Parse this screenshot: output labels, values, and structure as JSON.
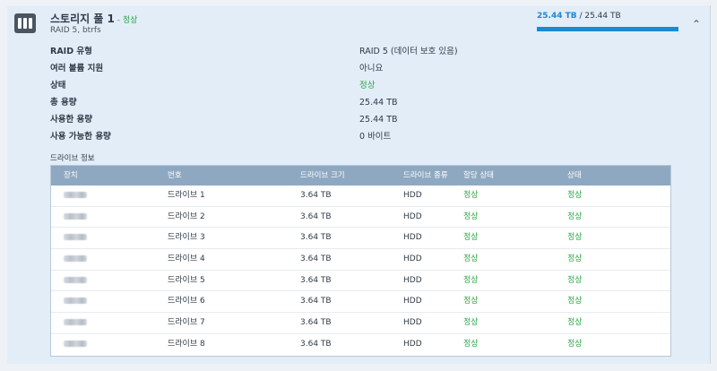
{
  "pool": {
    "title": "스토리지 풀 1",
    "separator": " - ",
    "status": "정상",
    "subtitle": "RAID 5, btrfs",
    "used": "25.44 TB",
    "capacity_suffix": " / 25.44 TB",
    "used_fraction": 1.0
  },
  "properties": [
    {
      "label": "RAID 유형",
      "value": "RAID 5 (데이터 보호 있음)"
    },
    {
      "label": "여러 볼륨 지원",
      "value": "아니요"
    },
    {
      "label": "상태",
      "value": "정상"
    },
    {
      "label": "총 용량",
      "value": "25.44 TB"
    },
    {
      "label": "사용한 용량",
      "value": "25.44 TB"
    },
    {
      "label": "사용 가능한 용량",
      "value": "0 바이트"
    }
  ],
  "drives_section_label": "드라이브 정보",
  "drive_table": {
    "headers": [
      "장치",
      "번호",
      "드라이브 크기",
      "드라이브 종류",
      "할당 상태",
      "상태"
    ],
    "rows": [
      {
        "number": "드라이브 1",
        "size": "3.64 TB",
        "type": "HDD",
        "allocation": "정상",
        "status": "정상"
      },
      {
        "number": "드라이브 2",
        "size": "3.64 TB",
        "type": "HDD",
        "allocation": "정상",
        "status": "정상"
      },
      {
        "number": "드라이브 3",
        "size": "3.64 TB",
        "type": "HDD",
        "allocation": "정상",
        "status": "정상"
      },
      {
        "number": "드라이브 4",
        "size": "3.64 TB",
        "type": "HDD",
        "allocation": "정상",
        "status": "정상"
      },
      {
        "number": "드라이브 5",
        "size": "3.64 TB",
        "type": "HDD",
        "allocation": "정상",
        "status": "정상"
      },
      {
        "number": "드라이브 6",
        "size": "3.64 TB",
        "type": "HDD",
        "allocation": "정상",
        "status": "정상"
      },
      {
        "number": "드라이브 7",
        "size": "3.64 TB",
        "type": "HDD",
        "allocation": "정상",
        "status": "정상"
      },
      {
        "number": "드라이브 8",
        "size": "3.64 TB",
        "type": "HDD",
        "allocation": "정상",
        "status": "정상"
      }
    ]
  },
  "icons": {
    "pool": "storage-pool-icon",
    "collapse": "chevron-up-icon"
  },
  "colors": {
    "accent": "#1a8ad1",
    "good": "#28a745",
    "table_header": "#8fa8c1"
  }
}
